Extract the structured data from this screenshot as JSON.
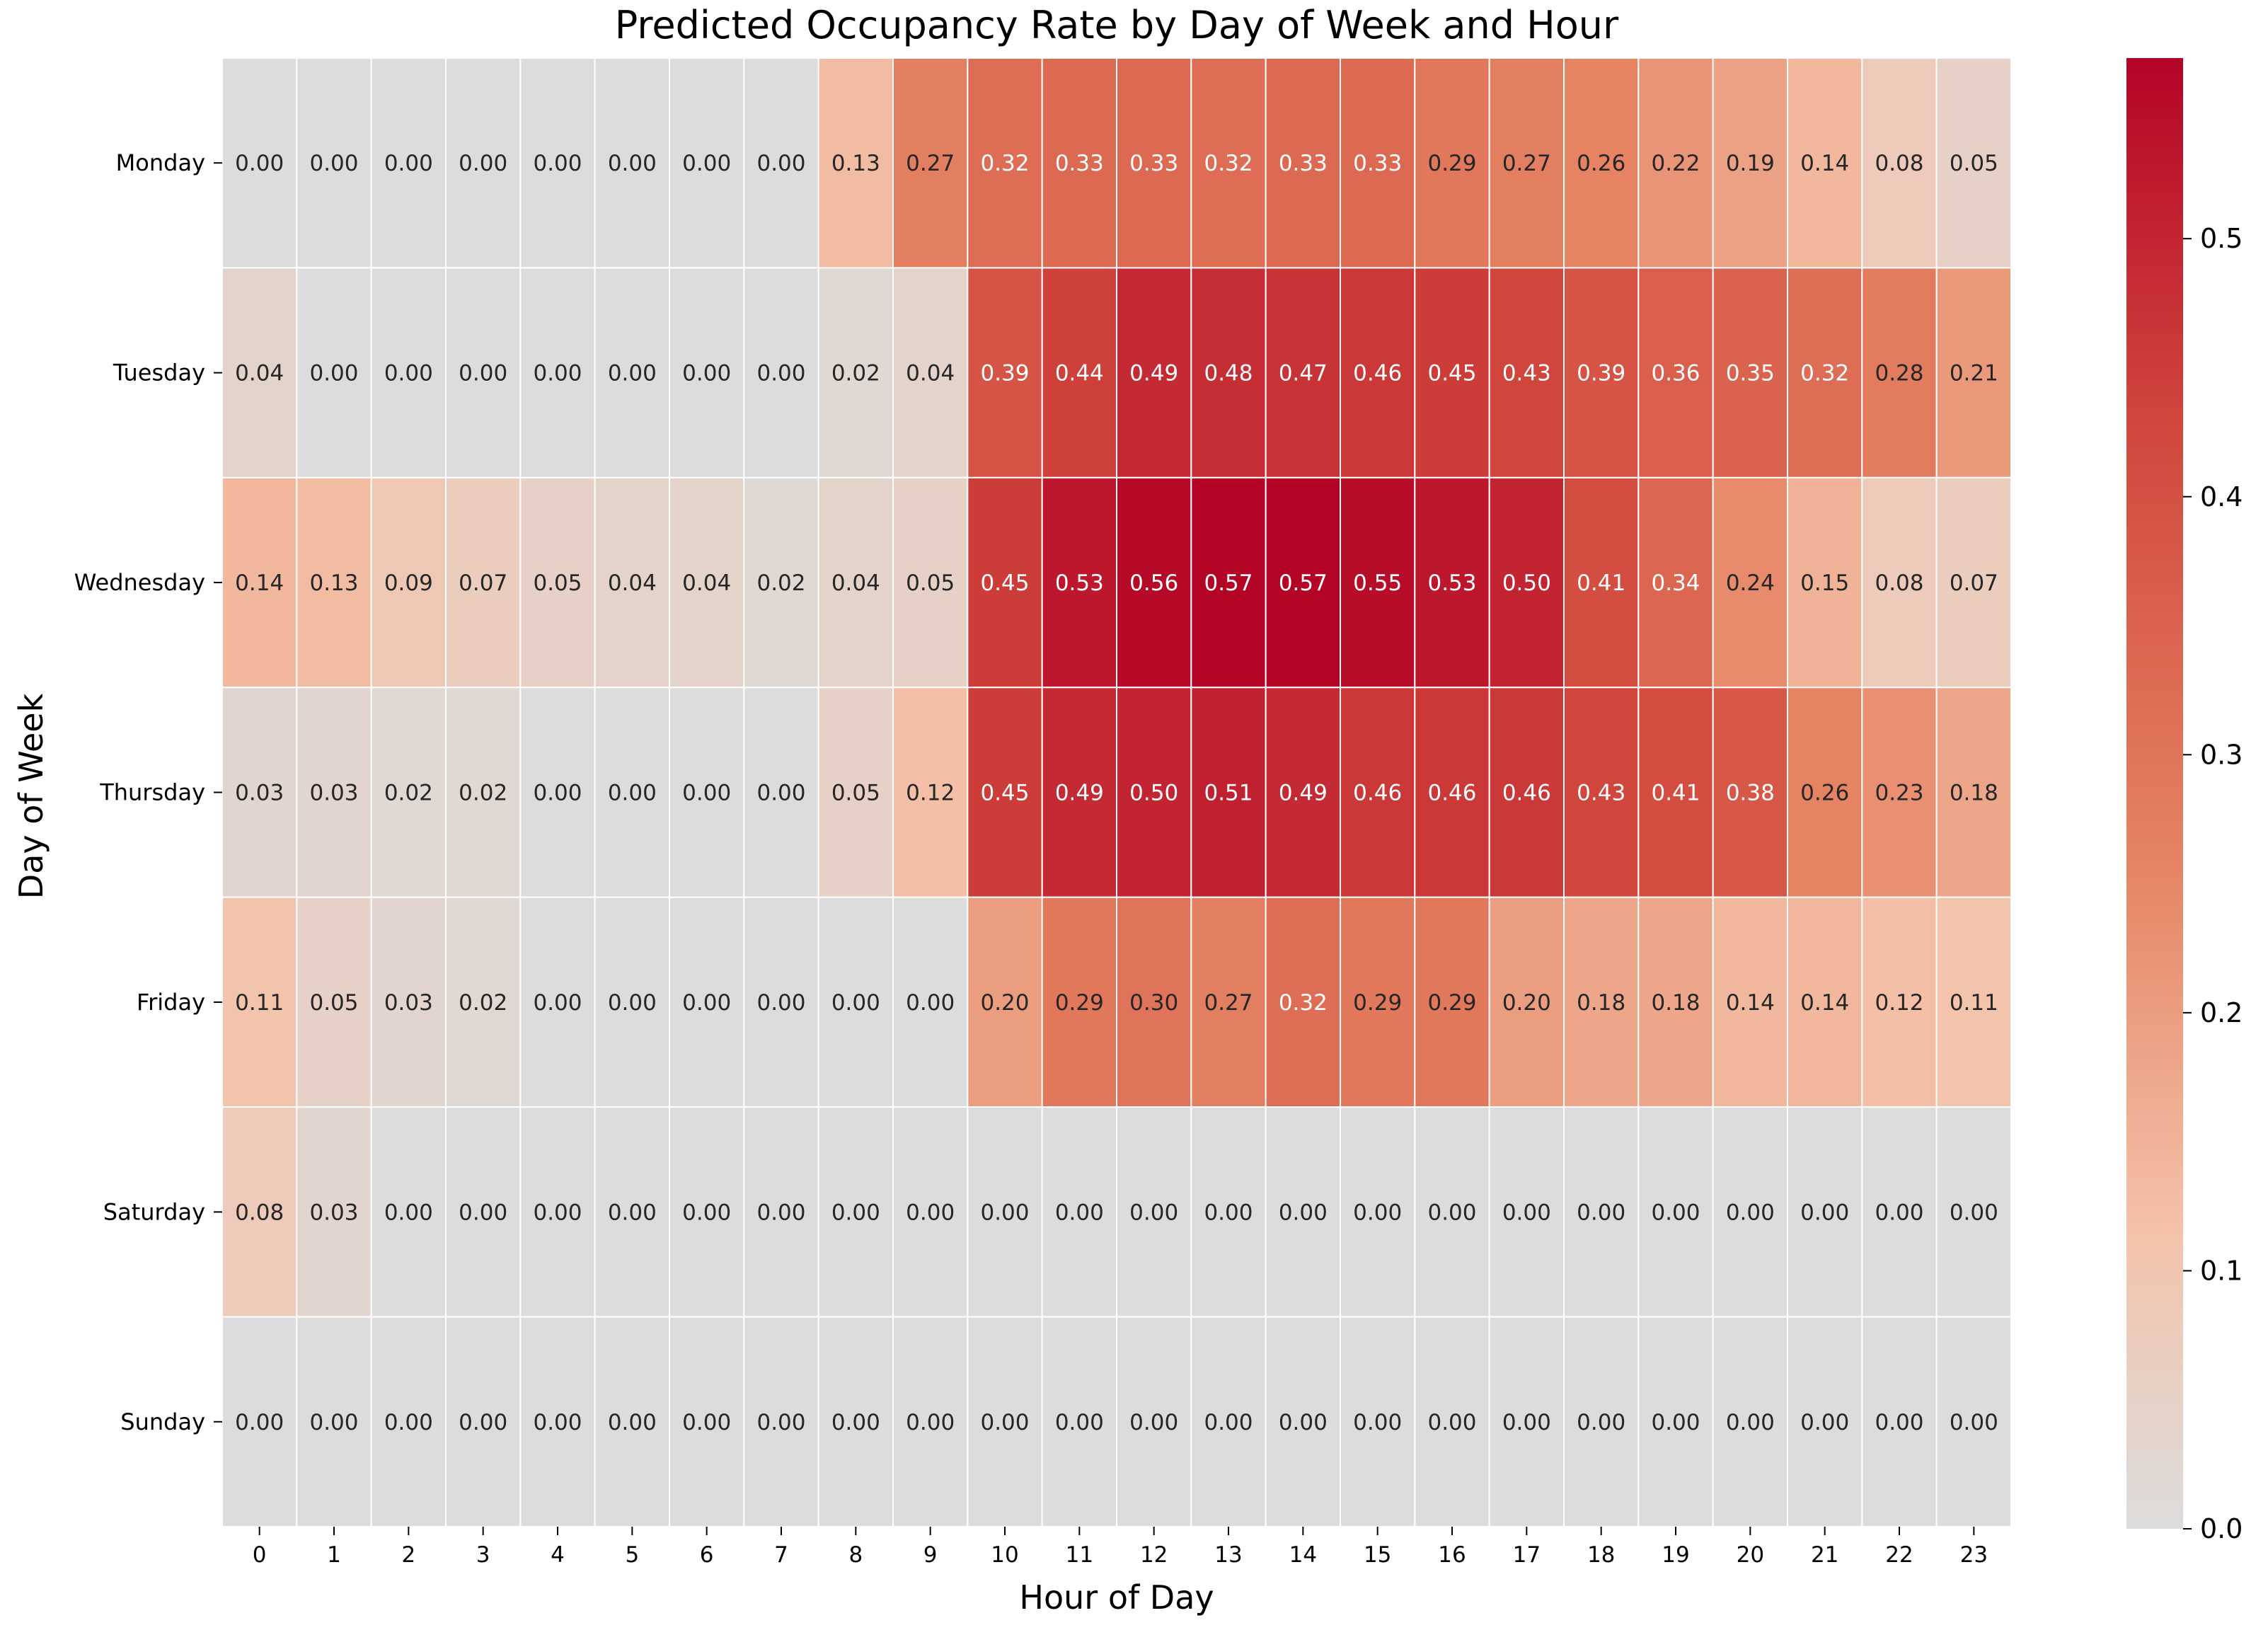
{
  "chart_data": {
    "type": "heatmap",
    "title": "Predicted Occupancy Rate by Day of Week and Hour",
    "xlabel": "Hour of Day",
    "ylabel": "Day of Week",
    "x_categories": [
      "0",
      "1",
      "2",
      "3",
      "4",
      "5",
      "6",
      "7",
      "8",
      "9",
      "10",
      "11",
      "12",
      "13",
      "14",
      "15",
      "16",
      "17",
      "18",
      "19",
      "20",
      "21",
      "22",
      "23"
    ],
    "y_categories": [
      "Monday",
      "Tuesday",
      "Wednesday",
      "Thursday",
      "Friday",
      "Saturday",
      "Sunday"
    ],
    "values": [
      [
        0.0,
        0.0,
        0.0,
        0.0,
        0.0,
        0.0,
        0.0,
        0.0,
        0.13,
        0.27,
        0.32,
        0.33,
        0.33,
        0.32,
        0.33,
        0.33,
        0.29,
        0.27,
        0.26,
        0.22,
        0.19,
        0.14,
        0.08,
        0.05
      ],
      [
        0.04,
        0.0,
        0.0,
        0.0,
        0.0,
        0.0,
        0.0,
        0.0,
        0.02,
        0.04,
        0.39,
        0.44,
        0.49,
        0.48,
        0.47,
        0.46,
        0.45,
        0.43,
        0.39,
        0.36,
        0.35,
        0.32,
        0.28,
        0.21
      ],
      [
        0.14,
        0.13,
        0.09,
        0.07,
        0.05,
        0.04,
        0.04,
        0.02,
        0.04,
        0.05,
        0.45,
        0.53,
        0.56,
        0.57,
        0.57,
        0.55,
        0.53,
        0.5,
        0.41,
        0.34,
        0.24,
        0.15,
        0.08,
        0.07
      ],
      [
        0.03,
        0.03,
        0.02,
        0.02,
        0.0,
        0.0,
        0.0,
        0.0,
        0.05,
        0.12,
        0.45,
        0.49,
        0.5,
        0.51,
        0.49,
        0.46,
        0.46,
        0.46,
        0.43,
        0.41,
        0.38,
        0.26,
        0.23,
        0.18
      ],
      [
        0.11,
        0.05,
        0.03,
        0.02,
        0.0,
        0.0,
        0.0,
        0.0,
        0.0,
        0.0,
        0.2,
        0.29,
        0.3,
        0.27,
        0.32,
        0.29,
        0.29,
        0.2,
        0.18,
        0.18,
        0.14,
        0.14,
        0.12,
        0.11
      ],
      [
        0.08,
        0.03,
        0.0,
        0.0,
        0.0,
        0.0,
        0.0,
        0.0,
        0.0,
        0.0,
        0.0,
        0.0,
        0.0,
        0.0,
        0.0,
        0.0,
        0.0,
        0.0,
        0.0,
        0.0,
        0.0,
        0.0,
        0.0,
        0.0
      ],
      [
        0.0,
        0.0,
        0.0,
        0.0,
        0.0,
        0.0,
        0.0,
        0.0,
        0.0,
        0.0,
        0.0,
        0.0,
        0.0,
        0.0,
        0.0,
        0.0,
        0.0,
        0.0,
        0.0,
        0.0,
        0.0,
        0.0,
        0.0,
        0.0
      ]
    ],
    "vmin": 0.0,
    "vmax": 0.57,
    "colorbar_ticks": [
      "0.0",
      "0.1",
      "0.2",
      "0.3",
      "0.4",
      "0.5"
    ],
    "colormap": "coolwarm-centered (grey at 0 to dark red at max)",
    "colors": {
      "zero": "#dcdcdc",
      "low": "#f4c3aa",
      "mid": "#e58464",
      "high": "#d1473d",
      "max": "#b40426",
      "grid_line": "#ffffff",
      "text": "#262626"
    },
    "annotation_format": "0.00",
    "grid": true,
    "legend": "colorbar-right"
  }
}
